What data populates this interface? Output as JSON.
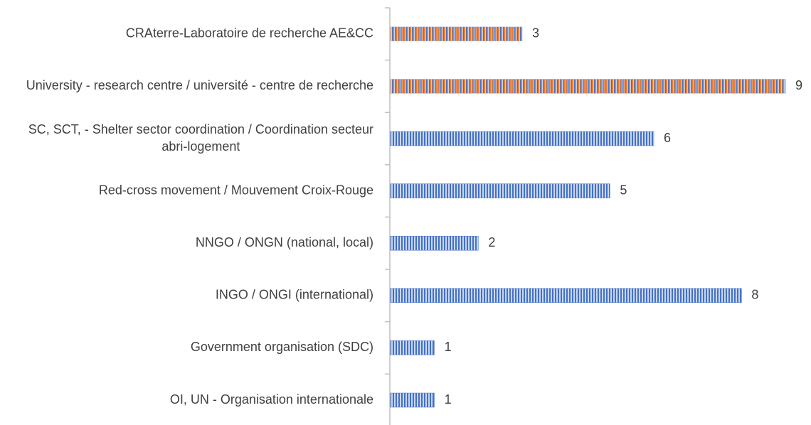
{
  "chart_data": {
    "type": "bar",
    "orientation": "horizontal",
    "categories": [
      "CRAterre-Laboratoire de recherche AE&CC",
      "University - research centre / université - centre de recherche",
      "SC, SCT, - Shelter sector coordination / Coordination secteur abri-logement",
      "Red-cross movement / Mouvement Croix-Rouge",
      "NNGO / ONGN (national, local)",
      "INGO / ONGI (international)",
      "Government organisation (SDC)",
      "OI, UN - Organisation internationale"
    ],
    "values": [
      3,
      9,
      6,
      5,
      2,
      8,
      1,
      1
    ],
    "colors": [
      "#ed7d31",
      "#ed7d31",
      "#4472c4",
      "#4472c4",
      "#4472c4",
      "#4472c4",
      "#4472c4",
      "#4472c4"
    ],
    "stripe_color": "#4472c4"
  }
}
